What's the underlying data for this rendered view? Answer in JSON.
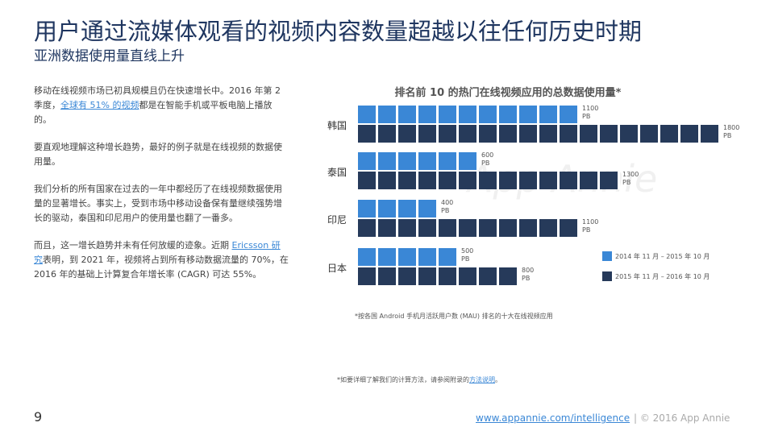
{
  "header": {
    "title": "用户通过流媒体观看的视频内容数量超越以往任何历史时期",
    "subtitle": "亚洲数据使用量直线上升"
  },
  "body": {
    "paragraphs": [
      [
        {
          "text": "移动在线视频市场已初具规模且仍在快速增长中。2016 年第 2 季度，"
        },
        {
          "text": "全球有 51% 的视频",
          "link": true
        },
        {
          "text": "都是在智能手机或平板电脑上播放的。"
        }
      ],
      [
        {
          "text": "要直观地理解这种增长趋势，最好的例子就是在线视频的数据使用量。"
        }
      ],
      [
        {
          "text": "我们分析的所有国家在过去的一年中都经历了在线视频数据使用量的显著增长。事实上，受到市场中移动设备保有量继续强势增长的驱动，泰国和印尼用户的使用量也翻了一番多。"
        }
      ],
      [
        {
          "text": "而且，这一增长趋势并未有任何放缓的迹象。近期 "
        },
        {
          "text": "Ericsson 研究",
          "link": true
        },
        {
          "text": "表明，到 2021 年，视频将占到所有移动数据流量的 70%，在 2016 年的基础上计算复合年增长率 (CAGR) 可达 55%。"
        }
      ]
    ]
  },
  "chart_data": {
    "type": "pictograph-bar",
    "title": "排名前 10 的热门在线视频应用的总数据使用量*",
    "categories": [
      "韩国",
      "泰国",
      "印尼",
      "日本"
    ],
    "series": [
      {
        "name": "2014 年 11 月 – 2015 年 10 月",
        "color": "#3a87d6",
        "values": [
          1100,
          600,
          400,
          500
        ],
        "value_labels": [
          "1100 PB",
          "600 PB",
          "400 PB",
          "500 PB"
        ]
      },
      {
        "name": "2015 年 11 月 – 2016 年 10 月",
        "color": "#263a5a",
        "values": [
          1800,
          1300,
          1100,
          800
        ],
        "value_labels": [
          "1800 PB",
          "1300 PB",
          "1100 PB",
          "800 PB"
        ]
      }
    ],
    "footnote": "*按各国 Android 手机月活跃用户数 (MAU) 排名的十大在线视频应用",
    "watermark": "App Annie"
  },
  "note": [
    {
      "text": "*如要详细了解我们的计算方法，请参阅附录的"
    },
    {
      "text": "方法说明",
      "link": true
    },
    {
      "text": "。"
    }
  ],
  "footer": {
    "page": "9",
    "url": "www.appannie.com/intelligence",
    "copyright": "| © 2016 App Annie"
  }
}
